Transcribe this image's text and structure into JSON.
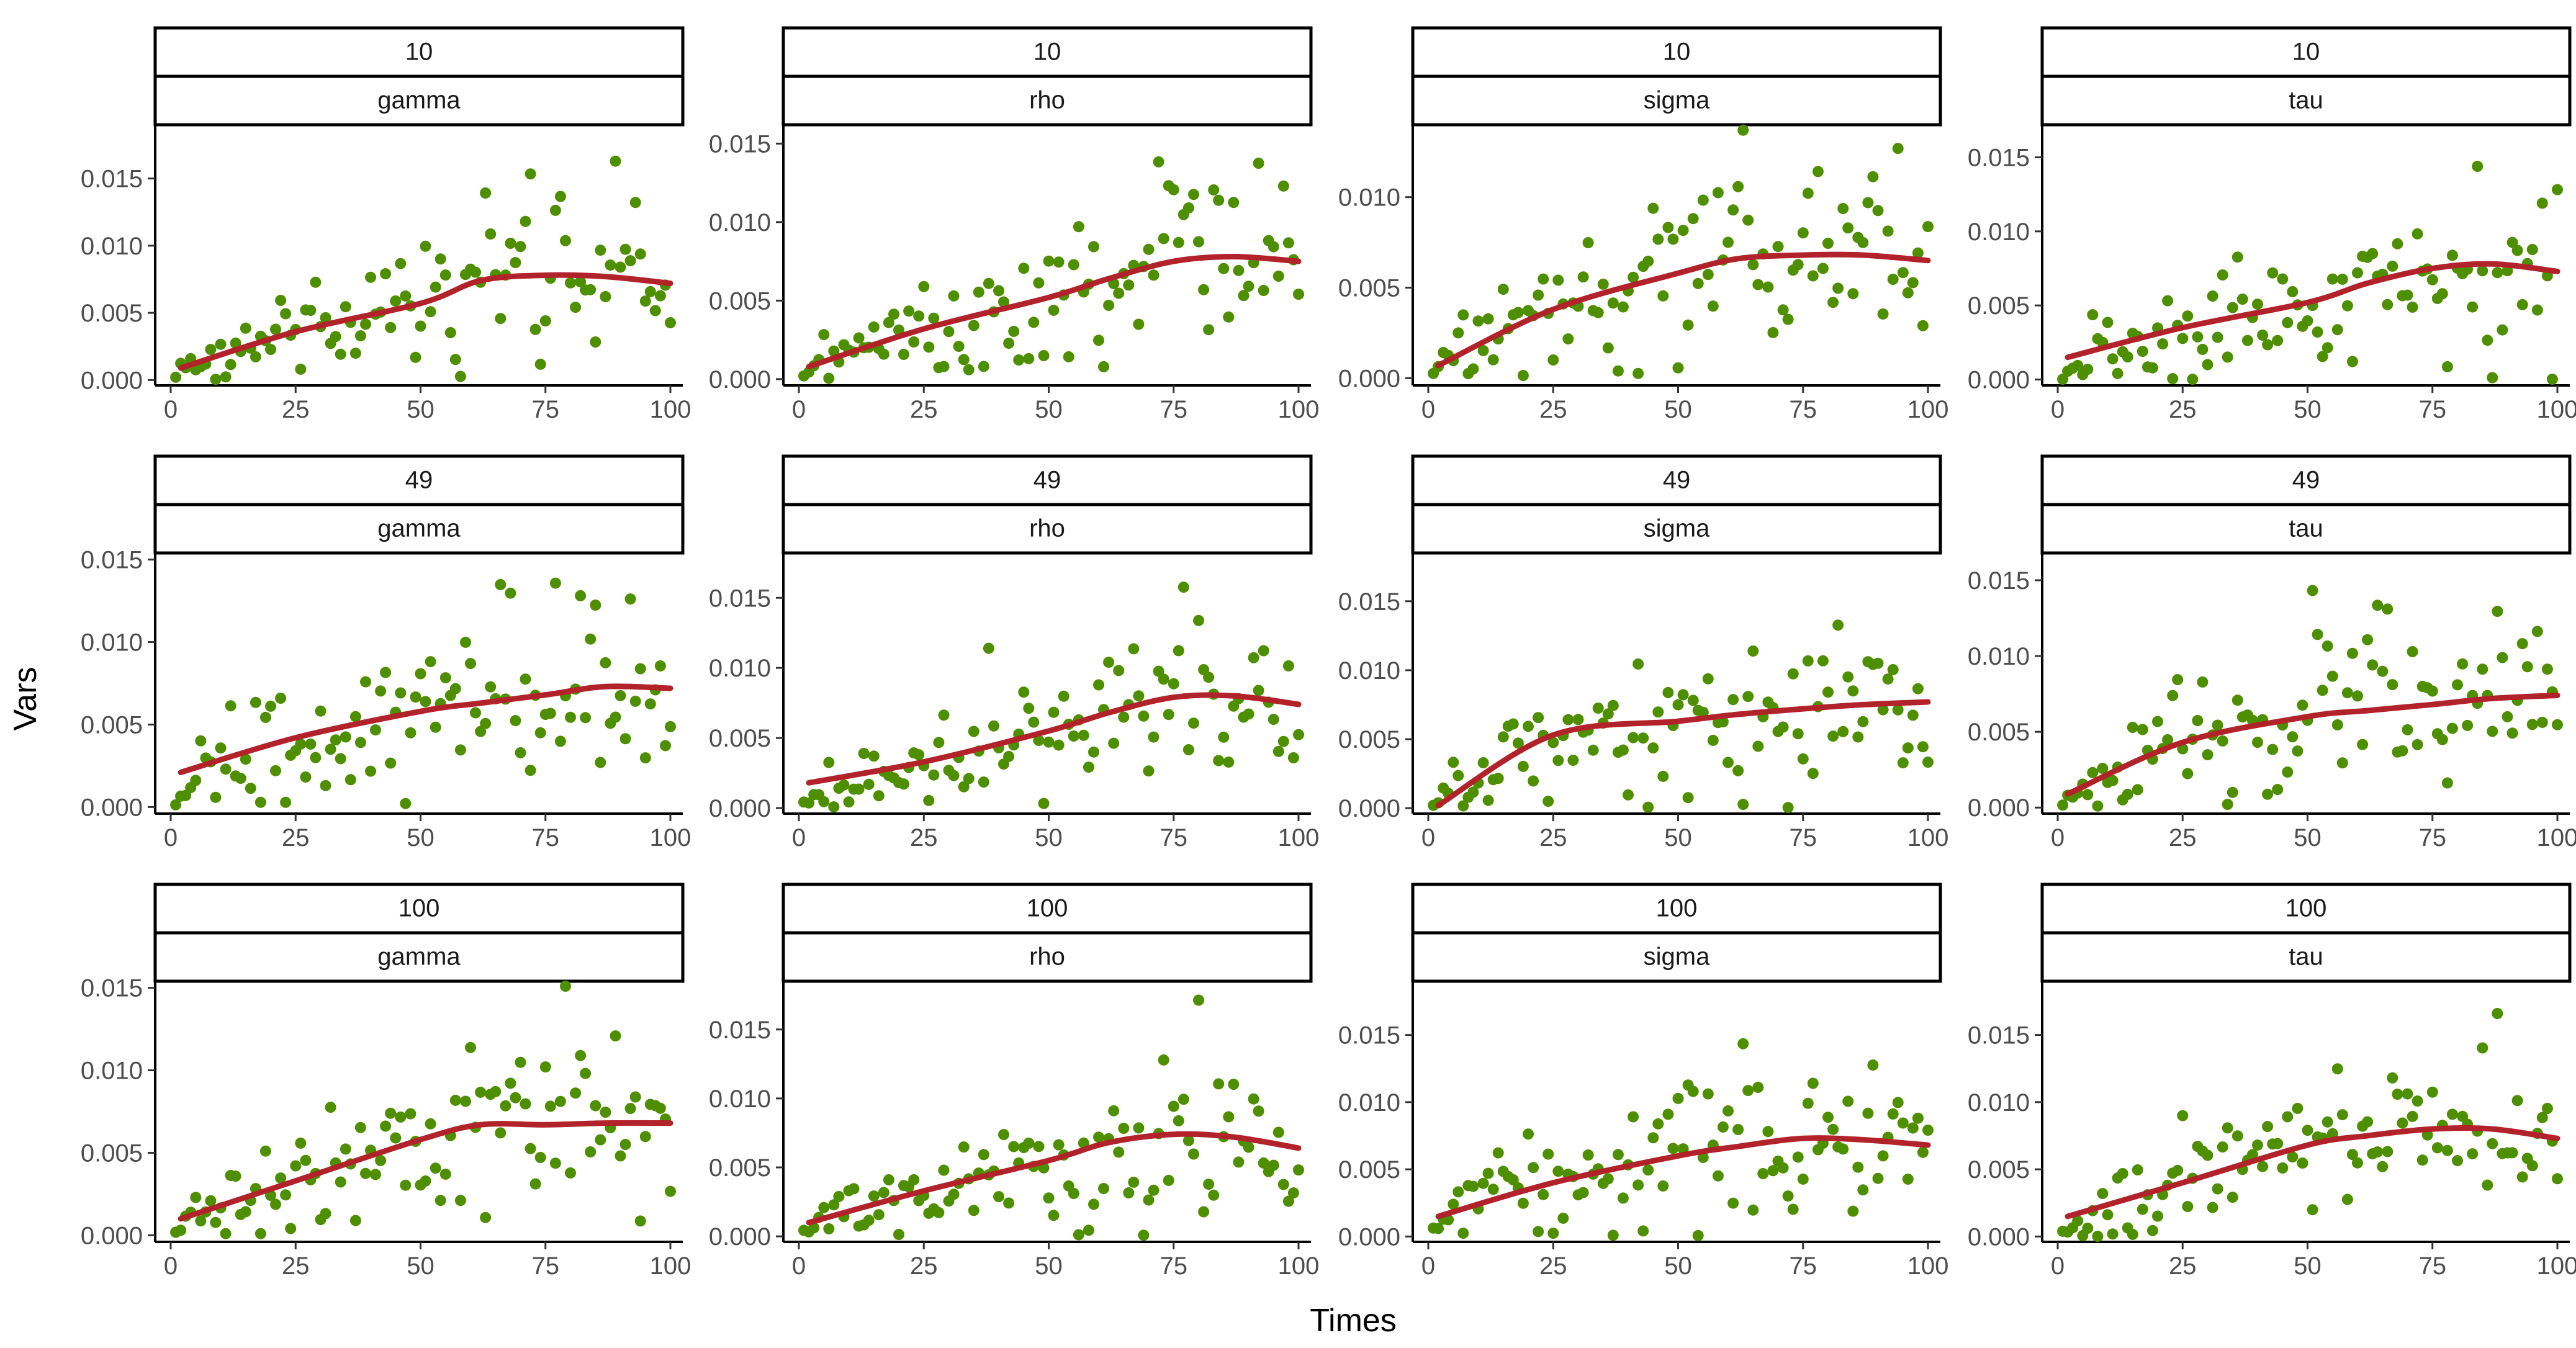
{
  "colors": {
    "points": "#4E8F00",
    "trend": "#B2222A"
  },
  "chart_data": {
    "type": "scatter",
    "xlabel": "Times",
    "ylabel": "Vars",
    "xlim": [
      0,
      100
    ],
    "xticks": [
      0,
      25,
      50,
      75,
      100
    ],
    "xtick_labels": [
      "0",
      "25",
      "50",
      "75",
      "100"
    ],
    "facet_rows": [
      "10",
      "49",
      "100"
    ],
    "facet_cols": [
      "gamma",
      "rho",
      "sigma",
      "tau"
    ],
    "panels": [
      {
        "row": "10",
        "param": "gamma",
        "ylim": [
          -0.0004,
          0.019
        ],
        "yticks": [
          0,
          0.005,
          0.01,
          0.015
        ],
        "ytick_labels": [
          "0.000",
          "0.005",
          "0.010",
          "0.015"
        ],
        "trend": [
          [
            2,
            0.0009
          ],
          [
            25,
            0.0036
          ],
          [
            50,
            0.0057
          ],
          [
            62,
            0.0074
          ],
          [
            75,
            0.0078
          ],
          [
            87,
            0.0077
          ],
          [
            100,
            0.0072
          ]
        ]
      },
      {
        "row": "10",
        "param": "rho",
        "ylim": [
          -0.0004,
          0.0162
        ],
        "yticks": [
          0,
          0.005,
          0.01,
          0.015
        ],
        "ytick_labels": [
          "0.000",
          "0.005",
          "0.010",
          "0.015"
        ],
        "trend": [
          [
            2,
            0.0008
          ],
          [
            25,
            0.0032
          ],
          [
            50,
            0.0052
          ],
          [
            62,
            0.0064
          ],
          [
            75,
            0.0075
          ],
          [
            87,
            0.0078
          ],
          [
            100,
            0.0075
          ]
        ]
      },
      {
        "row": "10",
        "param": "sigma",
        "ylim": [
          -0.0004,
          0.014
        ],
        "yticks": [
          0,
          0.005,
          0.01
        ],
        "ytick_labels": [
          "0.000",
          "0.005",
          "0.010"
        ],
        "trend": [
          [
            2,
            0.0007
          ],
          [
            25,
            0.0038
          ],
          [
            50,
            0.0058
          ],
          [
            62,
            0.0066
          ],
          [
            75,
            0.0068
          ],
          [
            87,
            0.0068
          ],
          [
            100,
            0.0065
          ]
        ]
      },
      {
        "row": "10",
        "param": "tau",
        "ylim": [
          -0.0004,
          0.0172
        ],
        "yticks": [
          0,
          0.005,
          0.01,
          0.015
        ],
        "ytick_labels": [
          "0.000",
          "0.005",
          "0.010",
          "0.015"
        ],
        "trend": [
          [
            2,
            0.0015
          ],
          [
            25,
            0.0035
          ],
          [
            50,
            0.0052
          ],
          [
            62,
            0.0065
          ],
          [
            75,
            0.0075
          ],
          [
            87,
            0.0078
          ],
          [
            100,
            0.0073
          ]
        ]
      },
      {
        "row": "49",
        "param": "gamma",
        "ylim": [
          -0.0004,
          0.0154
        ],
        "yticks": [
          0,
          0.005,
          0.01,
          0.015
        ],
        "ytick_labels": [
          "0.000",
          "0.005",
          "0.010",
          "0.015"
        ],
        "trend": [
          [
            2,
            0.0021
          ],
          [
            25,
            0.0042
          ],
          [
            50,
            0.0058
          ],
          [
            62,
            0.0063
          ],
          [
            75,
            0.0068
          ],
          [
            87,
            0.0073
          ],
          [
            100,
            0.0072
          ]
        ]
      },
      {
        "row": "49",
        "param": "rho",
        "ylim": [
          -0.0004,
          0.0182
        ],
        "yticks": [
          0,
          0.005,
          0.01,
          0.015
        ],
        "ytick_labels": [
          "0.000",
          "0.005",
          "0.010",
          "0.015"
        ],
        "trend": [
          [
            2,
            0.0018
          ],
          [
            25,
            0.0033
          ],
          [
            50,
            0.0055
          ],
          [
            62,
            0.0068
          ],
          [
            75,
            0.0079
          ],
          [
            87,
            0.008
          ],
          [
            100,
            0.0074
          ]
        ]
      },
      {
        "row": "49",
        "param": "sigma",
        "ylim": [
          -0.0004,
          0.0185
        ],
        "yticks": [
          0,
          0.005,
          0.01,
          0.015
        ],
        "ytick_labels": [
          "0.000",
          "0.005",
          "0.010",
          "0.015"
        ],
        "trend": [
          [
            2,
            0.0002
          ],
          [
            25,
            0.0053
          ],
          [
            50,
            0.0063
          ],
          [
            62,
            0.0068
          ],
          [
            75,
            0.0072
          ],
          [
            87,
            0.0075
          ],
          [
            100,
            0.0077
          ]
        ]
      },
      {
        "row": "49",
        "param": "tau",
        "ylim": [
          -0.0004,
          0.0168
        ],
        "yticks": [
          0,
          0.005,
          0.01,
          0.015
        ],
        "ytick_labels": [
          "0.000",
          "0.005",
          "0.010",
          "0.015"
        ],
        "trend": [
          [
            2,
            0.0009
          ],
          [
            25,
            0.0043
          ],
          [
            50,
            0.006
          ],
          [
            62,
            0.0064
          ],
          [
            75,
            0.0068
          ],
          [
            87,
            0.0072
          ],
          [
            100,
            0.0074
          ]
        ]
      },
      {
        "row": "100",
        "param": "gamma",
        "ylim": [
          -0.0004,
          0.0154
        ],
        "yticks": [
          0,
          0.005,
          0.01,
          0.015
        ],
        "ytick_labels": [
          "0.000",
          "0.005",
          "0.010",
          "0.015"
        ],
        "trend": [
          [
            2,
            0.001
          ],
          [
            25,
            0.0033
          ],
          [
            50,
            0.0058
          ],
          [
            62,
            0.0067
          ],
          [
            75,
            0.0067
          ],
          [
            87,
            0.0068
          ],
          [
            100,
            0.0068
          ]
        ]
      },
      {
        "row": "100",
        "param": "rho",
        "ylim": [
          -0.0004,
          0.0185
        ],
        "yticks": [
          0,
          0.005,
          0.01,
          0.015
        ],
        "ytick_labels": [
          "0.000",
          "0.005",
          "0.010",
          "0.015"
        ],
        "trend": [
          [
            2,
            0.001
          ],
          [
            25,
            0.0033
          ],
          [
            50,
            0.0055
          ],
          [
            62,
            0.0068
          ],
          [
            75,
            0.0074
          ],
          [
            87,
            0.0072
          ],
          [
            100,
            0.0064
          ]
        ]
      },
      {
        "row": "100",
        "param": "sigma",
        "ylim": [
          -0.0004,
          0.019
        ],
        "yticks": [
          0,
          0.005,
          0.01,
          0.015
        ],
        "ytick_labels": [
          "0.000",
          "0.005",
          "0.010",
          "0.015"
        ],
        "trend": [
          [
            2,
            0.0015
          ],
          [
            25,
            0.004
          ],
          [
            50,
            0.006
          ],
          [
            62,
            0.0067
          ],
          [
            75,
            0.0073
          ],
          [
            87,
            0.0072
          ],
          [
            100,
            0.0068
          ]
        ]
      },
      {
        "row": "100",
        "param": "tau",
        "ylim": [
          -0.0004,
          0.019
        ],
        "yticks": [
          0,
          0.005,
          0.01,
          0.015
        ],
        "ytick_labels": [
          "0.000",
          "0.005",
          "0.010",
          "0.015"
        ],
        "trend": [
          [
            2,
            0.0015
          ],
          [
            25,
            0.004
          ],
          [
            50,
            0.0068
          ],
          [
            62,
            0.0075
          ],
          [
            75,
            0.008
          ],
          [
            87,
            0.008
          ],
          [
            100,
            0.0073
          ]
        ]
      }
    ]
  }
}
